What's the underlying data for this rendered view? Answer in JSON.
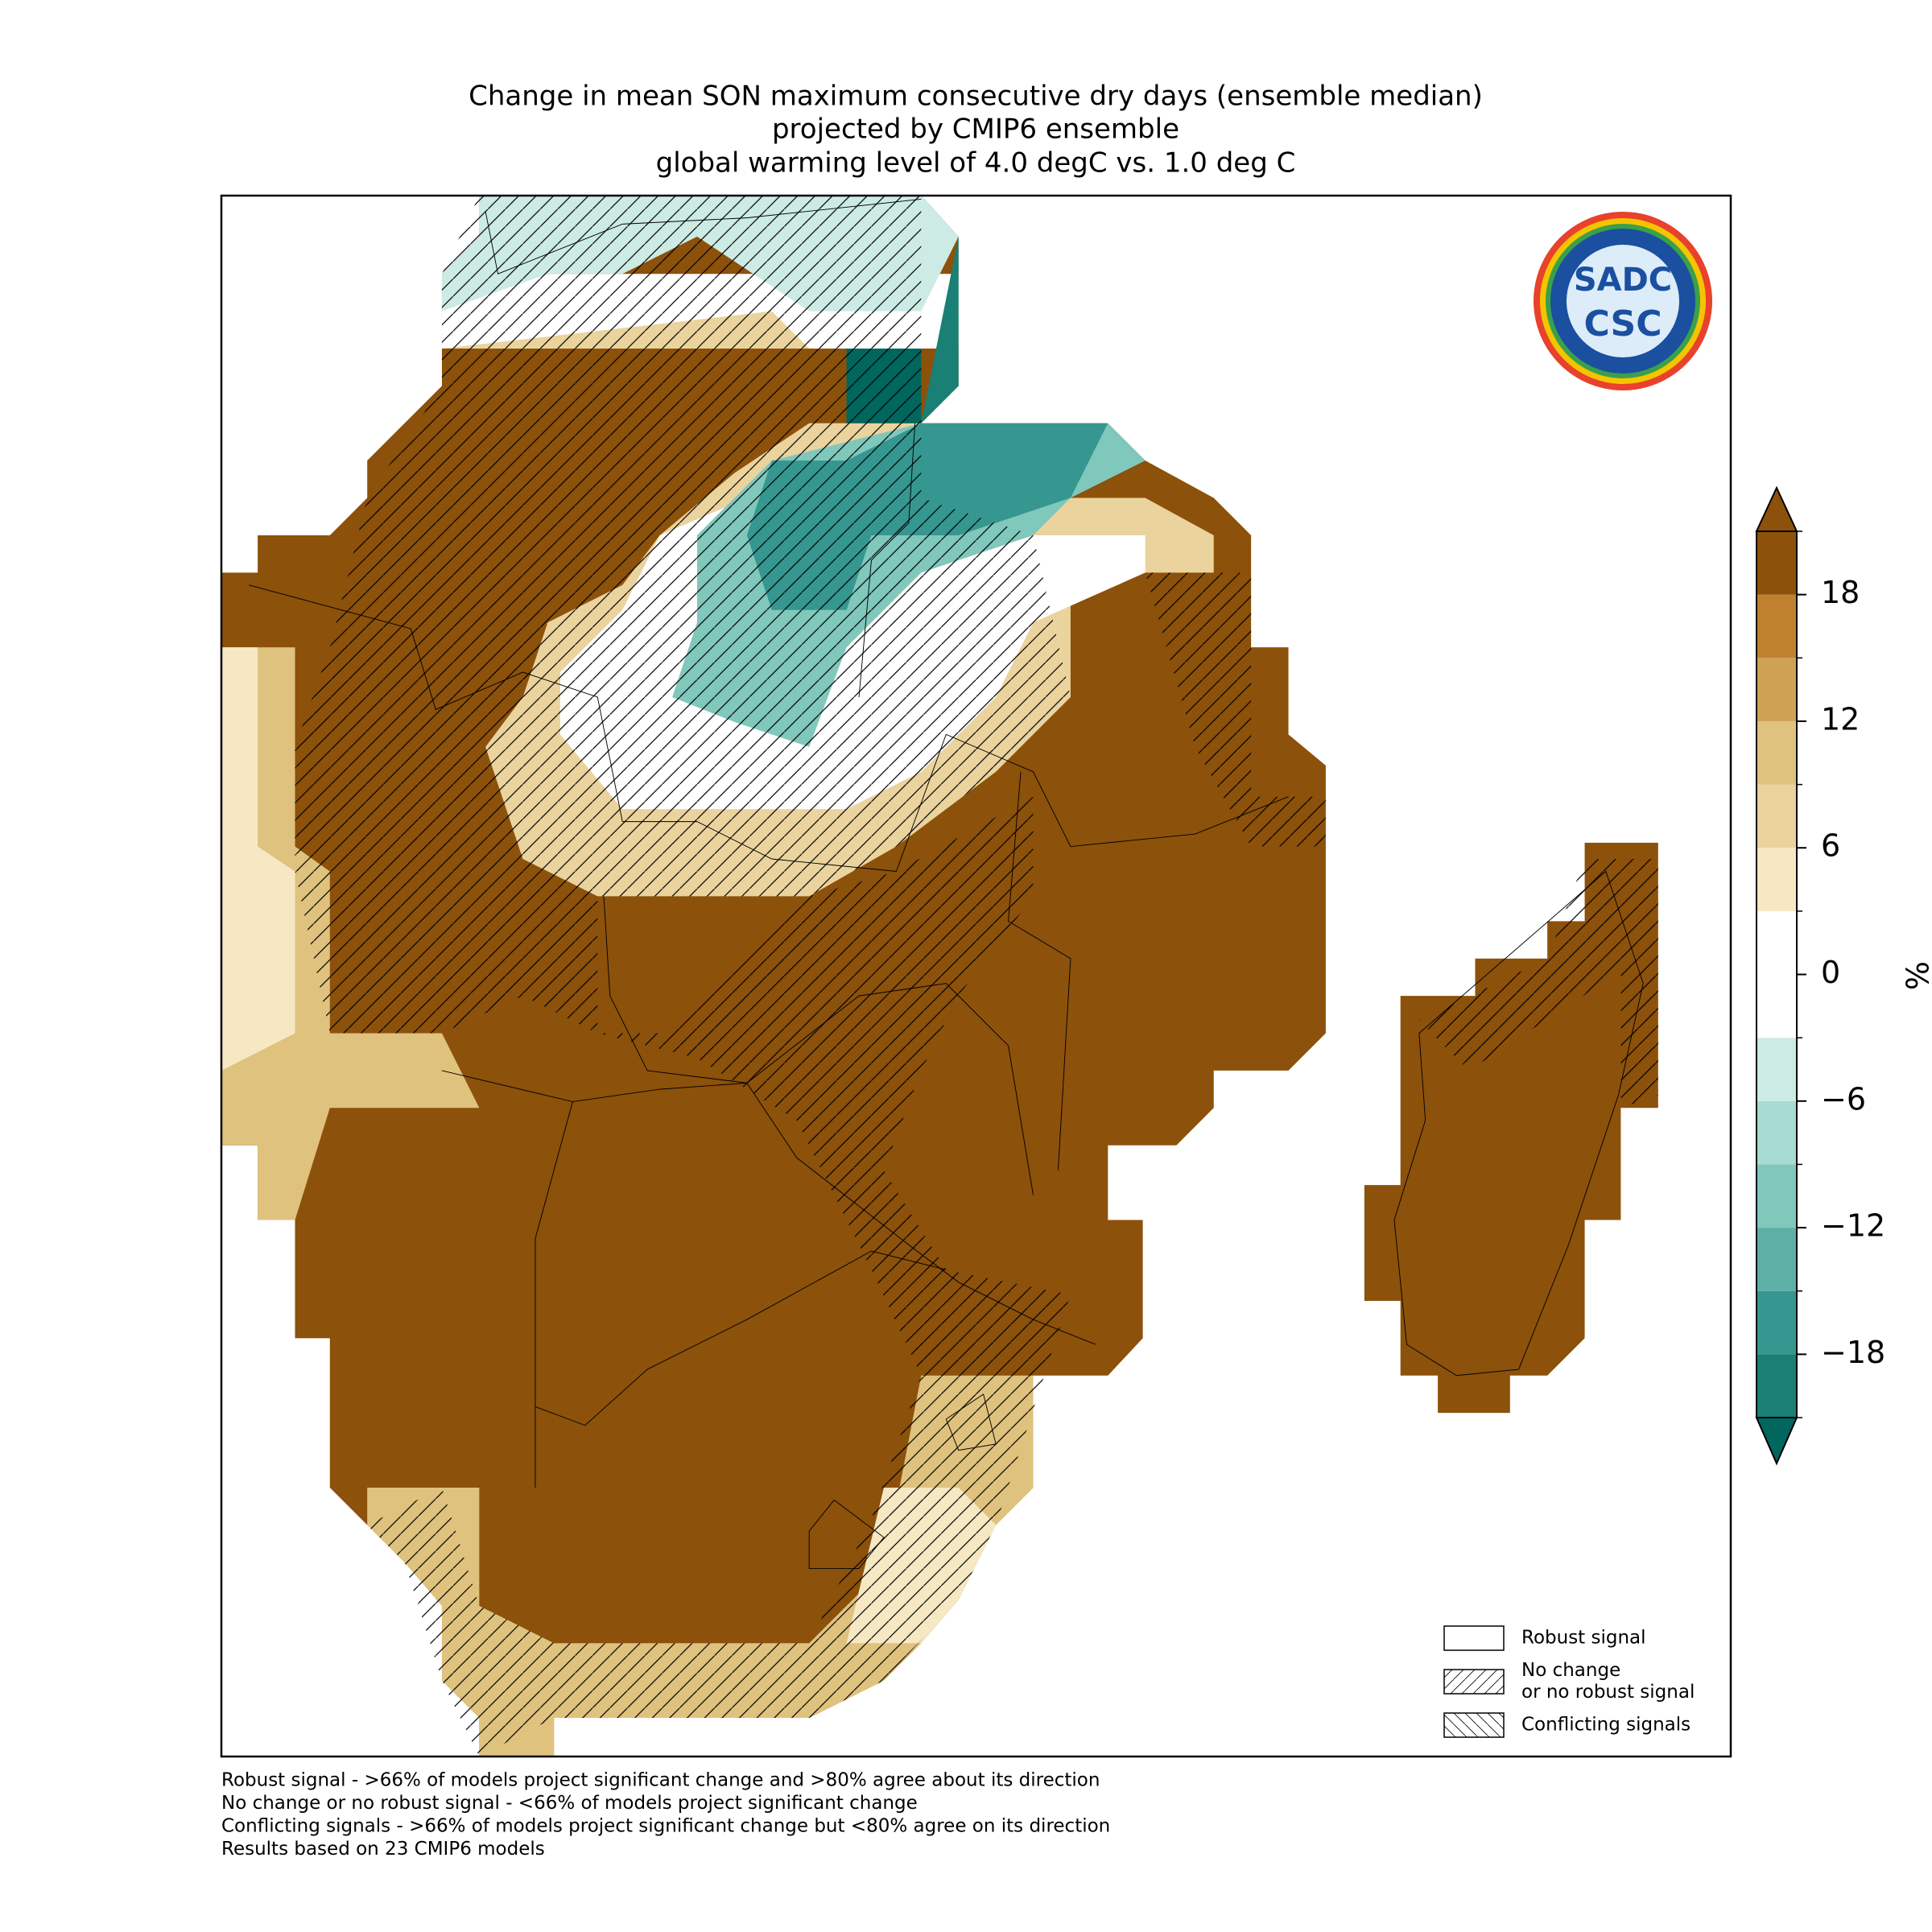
{
  "title": [
    "Change in mean SON maximum consecutive dry days (ensemble median)",
    "projected by CMIP6 ensemble",
    "global warming level of 4.0 degC vs. 1.0 deg C"
  ],
  "logo": {
    "top": "SADC",
    "bottom": "CSC"
  },
  "colorbar": {
    "label": "%",
    "lim": [
      -21,
      21
    ],
    "levels": [
      -21,
      -18,
      -15,
      -12,
      -9,
      -6,
      -3,
      3,
      6,
      9,
      12,
      15,
      18,
      21
    ],
    "colors": [
      "#1a7f75",
      "#35978f",
      "#5eb0a6",
      "#80c7bc",
      "#a8dbd2",
      "#cdebe5",
      "#ffffff",
      "#f6e8c3",
      "#ebd39e",
      "#dfc27d",
      "#cfa155",
      "#bf812d",
      "#8c510a"
    ],
    "under_color": "#01665e",
    "over_color": "#8c510a",
    "ticks": [
      {
        "value": -18,
        "label": "−18"
      },
      {
        "value": -12,
        "label": "−12"
      },
      {
        "value": -6,
        "label": "−6"
      },
      0,
      6,
      12,
      18
    ]
  },
  "legend": [
    {
      "lines": [
        "Robust signal"
      ],
      "hatch": "none"
    },
    {
      "lines": [
        "No change",
        "or no robust signal"
      ],
      "hatch": "forward"
    },
    {
      "lines": [
        "Conflicting signals"
      ],
      "hatch": "back"
    }
  ],
  "notes": [
    "Robust signal - >66% of models project significant change and >80% agree about its direction",
    "No change or no robust signal - <66% of models project significant change",
    "Conflicting signals - >66% of models project significant change but <80% agree on its direction",
    "Results based on 23 CMIP6 models"
  ]
}
